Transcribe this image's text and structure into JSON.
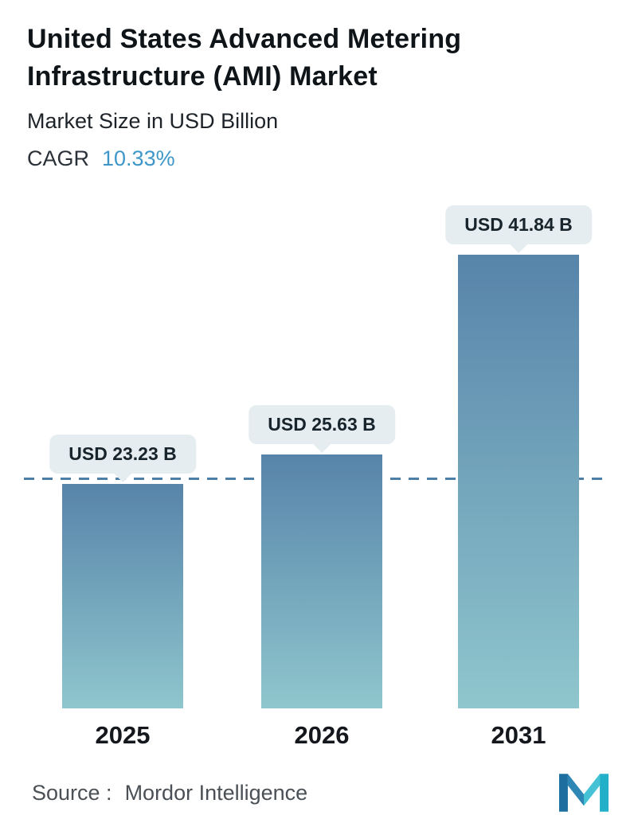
{
  "header": {
    "title": "United States Advanced Metering Infrastructure (AMI) Market",
    "subtitle": "Market Size in USD Billion",
    "cagr_label": "CAGR",
    "cagr_value": "10.33%"
  },
  "chart_data": {
    "type": "bar",
    "title": "United States Advanced Metering Infrastructure (AMI) Market",
    "subtitle": "Market Size in USD Billion",
    "unit": "USD Billion",
    "cagr_percent": 10.33,
    "categories": [
      "2025",
      "2026",
      "2031"
    ],
    "values": [
      23.23,
      25.63,
      41.84
    ],
    "value_labels": [
      "USD 23.23 B",
      "USD 25.63 B",
      "USD 41.84 B"
    ],
    "ylim": [
      5,
      45
    ],
    "grid": false,
    "legend": false,
    "reference_line": {
      "value": 23.23,
      "style": "dashed",
      "orientation": "horizontal"
    }
  },
  "footer": {
    "source_label": "Source :",
    "source_name": "Mordor Intelligence",
    "logo_name": "mordor-intelligence-logo"
  },
  "colors": {
    "background": "#ffffff",
    "title_text": "#0e1418",
    "subtitle_text": "#1d2328",
    "cagr_value": "#3f97c9",
    "bar_top": "#5784aa",
    "bar_bottom": "#8fc6cd",
    "callout_bg": "#e6edf0",
    "callout_text": "#17242c",
    "dashed_line": "#4d7ea6",
    "axis_label": "#14181c",
    "source_text": "#4a5055",
    "logo_dark": "#1e6fa0",
    "logo_mid": "#2e86b5",
    "logo_teal": "#45c2d6",
    "logo_cyan": "#22b0c9"
  }
}
